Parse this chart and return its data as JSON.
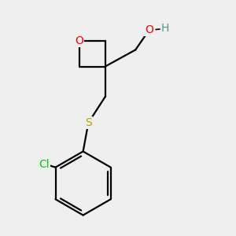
{
  "background_color": "#efefef",
  "atom_colors": {
    "O": "#ff0000",
    "S": "#b8a000",
    "Cl": "#00cc00",
    "C": "#000000",
    "H": "#4a9999"
  },
  "bond_color": "#000000",
  "bond_width": 1.6,
  "font_size": 10
}
